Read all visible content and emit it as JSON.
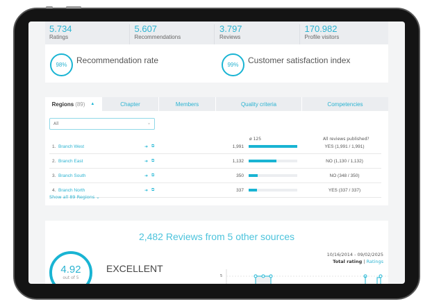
{
  "stats": [
    {
      "value": "5.734",
      "label": "Ratings"
    },
    {
      "value": "5.607",
      "label": "Recommendations"
    },
    {
      "value": "3.797",
      "label": "Reviews"
    },
    {
      "value": "170.982",
      "label": "Profile visitors"
    }
  ],
  "rates": [
    {
      "value": "98%",
      "label": "Recommendation rate"
    },
    {
      "value": "99%",
      "label": "Customer satisfaction index"
    }
  ],
  "tabs": {
    "active": {
      "label": "Regions",
      "count": "(89)"
    },
    "others": [
      "Chapter",
      "Members",
      "Quality criteria",
      "Competencies"
    ]
  },
  "filter": {
    "value": "All"
  },
  "table": {
    "avg_header": "ø 125",
    "published_header": "All reviews published?",
    "rows": [
      {
        "rank": "1.",
        "name": "Branch West",
        "count": "1,991",
        "fill": 100,
        "published": "YES (1,991 / 1,991)"
      },
      {
        "rank": "2.",
        "name": "Branch East",
        "count": "1,132",
        "fill": 57,
        "published": "NO (1,130 / 1,132)"
      },
      {
        "rank": "3.",
        "name": "Branch South",
        "count": "350",
        "fill": 18,
        "published": "NO (348 / 350)"
      },
      {
        "rank": "4.",
        "name": "Branch North",
        "count": "337",
        "fill": 17,
        "published": "YES (337 / 337)"
      }
    ]
  },
  "show_all": "Show all 89 Regions ⌄",
  "reviews": {
    "title": "2,482 Reviews from 5 other sources",
    "score": "4.92",
    "out_of": "out of 5",
    "verdict": "EXCELLENT",
    "date_range": "10/16/2014 - 09/02/2025",
    "total_rating": "Total rating",
    "separator": "|",
    "ratings_link": "Ratings",
    "y_tick": "5"
  },
  "colors": {
    "accent": "#19b4d3"
  }
}
